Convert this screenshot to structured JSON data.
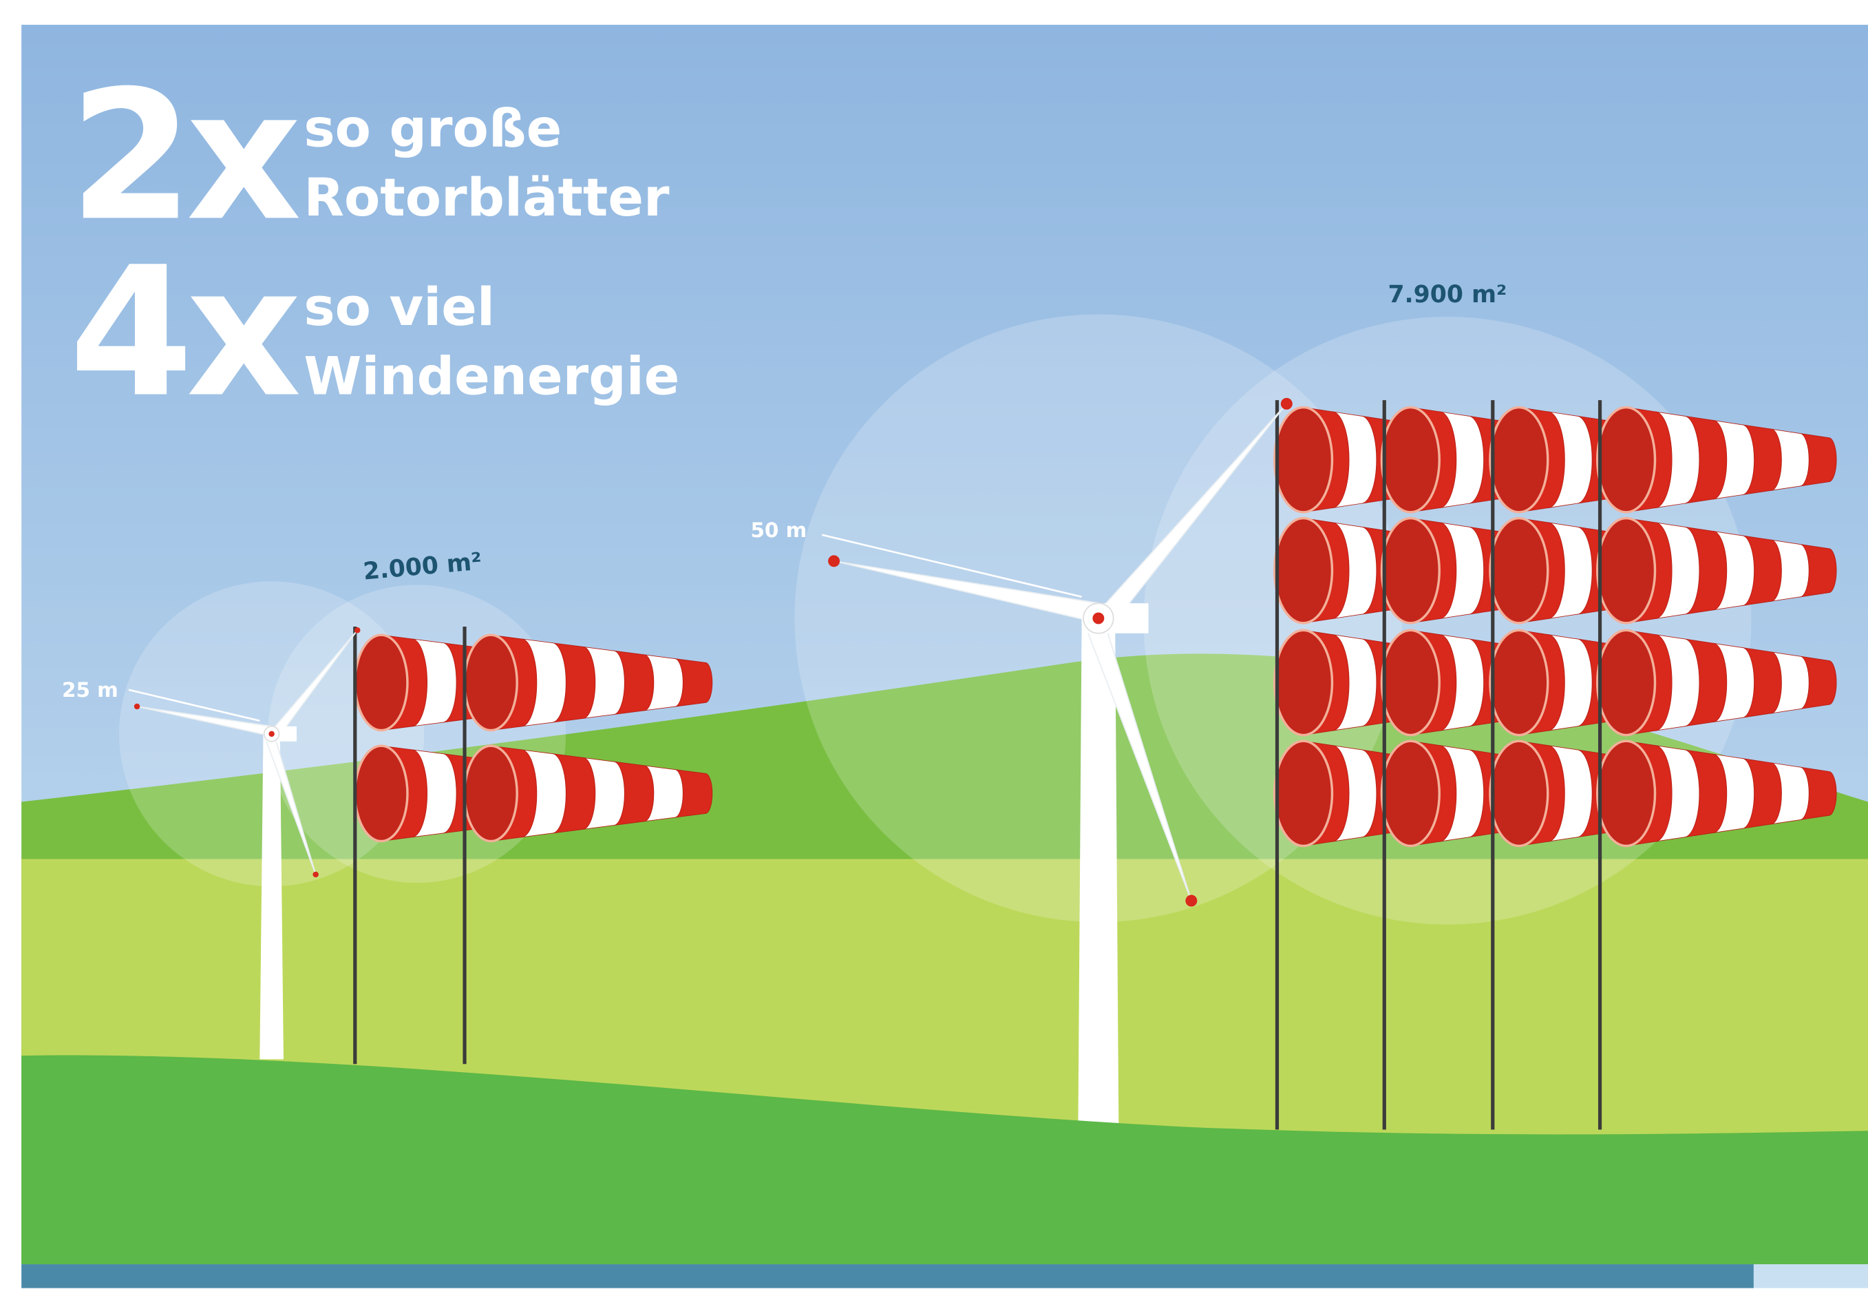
{
  "headline": [
    {
      "factor": "2x",
      "line1": "so große",
      "line2": "Rotorblätter"
    },
    {
      "factor": "4x",
      "line1": "so viel",
      "line2": "Windenergie"
    }
  ],
  "turbines": [
    {
      "radius_label": "25 m",
      "area_label": "2.000 m²"
    },
    {
      "radius_label": "50 m",
      "area_label": "7.900 m²"
    }
  ]
}
